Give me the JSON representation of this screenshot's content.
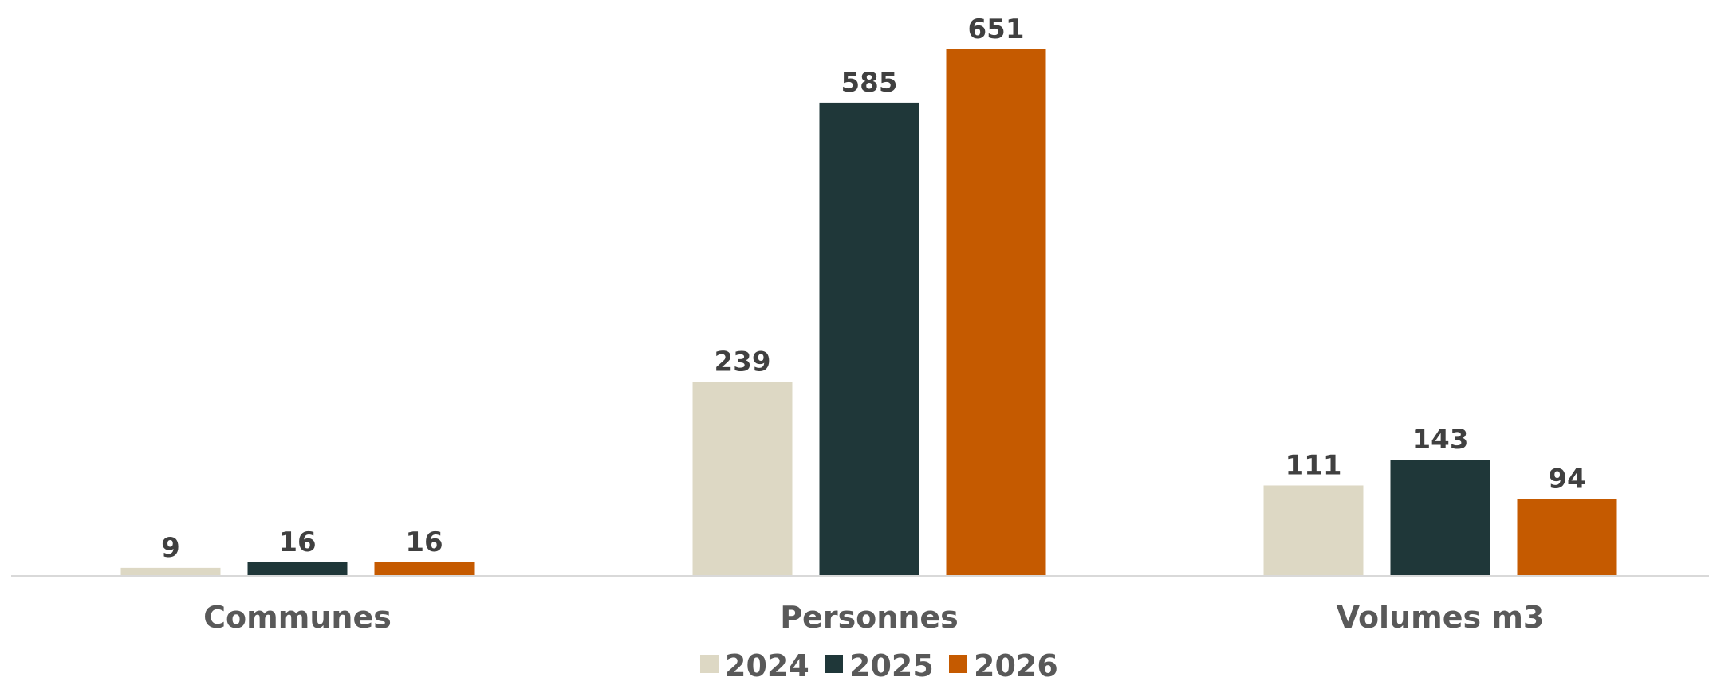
{
  "chart_data": {
    "type": "bar",
    "categories": [
      "Communes",
      "Personnes",
      "Volumes m3"
    ],
    "series": [
      {
        "name": "2024",
        "values": [
          9,
          239,
          111
        ],
        "color": "#DDD8C4"
      },
      {
        "name": "2025",
        "values": [
          16,
          585,
          143
        ],
        "color": "#1F3739"
      },
      {
        "name": "2026",
        "values": [
          16,
          651,
          94
        ],
        "color": "#C55A00"
      }
    ],
    "ylim": [
      0,
      651
    ],
    "grid": false,
    "legend": "bottom",
    "axis_color": "#D9D9D9"
  }
}
